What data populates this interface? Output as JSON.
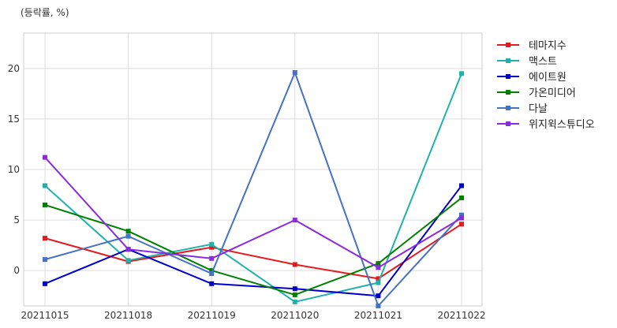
{
  "chart_data": {
    "type": "line",
    "title": "",
    "xlabel": "",
    "ylabel": "(등락률, %)",
    "categories": [
      "20211015",
      "20211018",
      "20211019",
      "20211020",
      "20211021",
      "20211022"
    ],
    "yticks": [
      0,
      5,
      10,
      15,
      20
    ],
    "ylim": [
      -3.5,
      23.5
    ],
    "grid": true,
    "legend_position": "outside-right-top",
    "series": [
      {
        "name": "테마지수",
        "color": "#e41a1c",
        "values": [
          3.2,
          0.9,
          2.3,
          0.6,
          -0.8,
          4.6
        ]
      },
      {
        "name": "맥스트",
        "color": "#20b2aa",
        "values": [
          8.4,
          1.0,
          2.6,
          -3.1,
          -1.2,
          19.5
        ]
      },
      {
        "name": "에이트원",
        "color": "#0000cd",
        "values": [
          -1.3,
          2.1,
          -1.3,
          -1.8,
          -2.5,
          8.4
        ]
      },
      {
        "name": "가온미디어",
        "color": "#008000",
        "values": [
          6.5,
          3.9,
          0.0,
          -2.4,
          0.7,
          7.2
        ]
      },
      {
        "name": "다날",
        "color": "#4472c4",
        "values": [
          1.1,
          3.4,
          -0.3,
          19.6,
          -3.5,
          5.5
        ]
      },
      {
        "name": "위지윅스튜디오",
        "color": "#8a2be2",
        "values": [
          11.2,
          2.1,
          1.2,
          5.0,
          0.3,
          5.2
        ]
      }
    ]
  }
}
